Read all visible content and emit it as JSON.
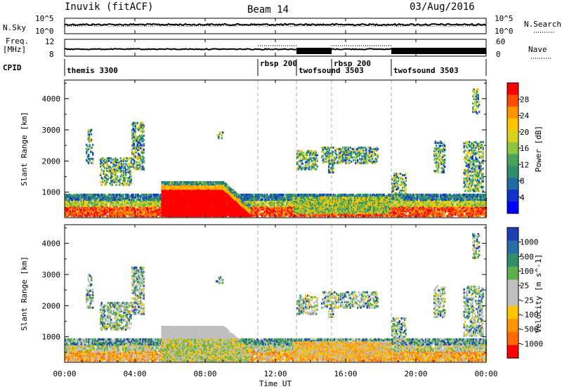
{
  "header": {
    "station": "Inuvik (fitACF)",
    "beam": "Beam 14",
    "date": "03/Aug/2016"
  },
  "summary_panels": {
    "nsky_label": "N.Sky",
    "nsearch_label": "N.Search",
    "freq_label_top": "Freq.",
    "freq_label_unit": "[MHz]",
    "nave_label": "Nave",
    "cpid_label": "CPID",
    "noise_ticks_left": [
      "10^5",
      "10^0"
    ],
    "noise_ticks_right": [
      "10^5",
      "10^0"
    ],
    "freq_ticks": [
      "12",
      "8"
    ],
    "nave_ticks": [
      "60",
      "0"
    ]
  },
  "cpid_segments": [
    {
      "label": "themis 3300",
      "start_hour": 0.0
    },
    {
      "label": "rbsp 200",
      "start_hour": 11.0
    },
    {
      "label": "twofsound 3503",
      "start_hour": 13.2
    },
    {
      "label": "rbsp 200",
      "start_hour": 15.2
    },
    {
      "label": "twofsound 3503",
      "start_hour": 18.6
    }
  ],
  "chart_data": [
    {
      "type": "heatmap",
      "name": "Power",
      "ylabel": "Slant Range [km]",
      "colorbar_label": "Power [dB]",
      "colorbar_ticks": [
        "28",
        "24",
        "20",
        "16",
        "12",
        "8",
        "4"
      ],
      "colorbar_colors": [
        "#ff0000",
        "#ff4a00",
        "#ff9400",
        "#ffc400",
        "#d7d220",
        "#8cc63e",
        "#4aa35a",
        "#2f8f6a",
        "#1f6aa0",
        "#1034c8",
        "#0000ff"
      ],
      "ylim": [
        180,
        4600
      ],
      "yticks": [
        "1000",
        "2000",
        "3000",
        "4000"
      ],
      "xlim_hours": [
        0,
        24
      ]
    },
    {
      "type": "heatmap",
      "name": "Velocity",
      "ylabel": "Slant Range [km]",
      "colorbar_label": "Velocity [m s^-1]",
      "colorbar_ticks": [
        "1000",
        "500",
        "100",
        "25",
        "-25",
        "-100",
        "-500",
        "-1000"
      ],
      "colorbar_colors": [
        "#1e3fb4",
        "#2a6ca8",
        "#2f8f6a",
        "#5db04a",
        "#bfbfbf",
        "#bfbfbf",
        "#ffc400",
        "#ff9400",
        "#ff6a00",
        "#ff0000"
      ],
      "ylim": [
        180,
        4600
      ],
      "yticks": [
        "1000",
        "2000",
        "3000",
        "4000"
      ],
      "xlim_hours": [
        0,
        24
      ]
    }
  ],
  "xaxis": {
    "label": "Time UT",
    "ticks": [
      "00:00",
      "04:00",
      "08:00",
      "12:00",
      "16:00",
      "20:00",
      "00:00"
    ]
  }
}
